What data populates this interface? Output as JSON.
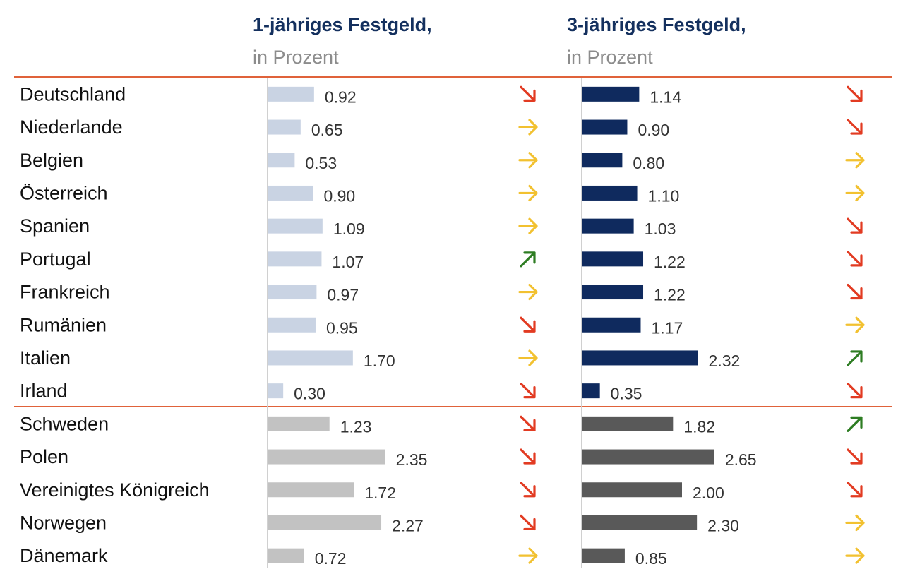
{
  "colors": {
    "rule": "#e0623a",
    "axis": "#d0d0d0",
    "euro_1y": "#c9d3e3",
    "euro_3y": "#0f2a5e",
    "noneuro_1y": "#c2c2c2",
    "noneuro_3y": "#595959",
    "trend_down": "#e23b22",
    "trend_flat": "#f2c130",
    "trend_up": "#2e7d23"
  },
  "chart_data": [
    {
      "type": "bar",
      "orientation": "horizontal",
      "title": "1-jähriges Festgeld,",
      "subtitle": "in Prozent",
      "categories": [
        "Deutschland",
        "Niederlande",
        "Belgien",
        "Österreich",
        "Spanien",
        "Portugal",
        "Frankreich",
        "Rumänien",
        "Italien",
        "Irland",
        "Schweden",
        "Polen",
        "Vereinigtes Königreich",
        "Norwegen",
        "Dänemark"
      ],
      "values": [
        0.92,
        0.65,
        0.53,
        0.9,
        1.09,
        1.07,
        0.97,
        0.95,
        1.7,
        0.3,
        1.23,
        2.35,
        1.72,
        2.27,
        0.72
      ],
      "value_labels": [
        "0.92",
        "0.65",
        "0.53",
        "0.90",
        "1.09",
        "1.07",
        "0.97",
        "0.95",
        "1.70",
        "0.30",
        "1.23",
        "2.35",
        "1.72",
        "2.27",
        "0.72"
      ],
      "trends": [
        "down",
        "flat",
        "flat",
        "flat",
        "flat",
        "up",
        "flat",
        "down",
        "flat",
        "down",
        "down",
        "down",
        "down",
        "down",
        "flat"
      ],
      "xlim": [
        0,
        2.7
      ],
      "groups": [
        "euro",
        "euro",
        "euro",
        "euro",
        "euro",
        "euro",
        "euro",
        "euro",
        "euro",
        "euro",
        "non-euro",
        "non-euro",
        "non-euro",
        "non-euro",
        "non-euro"
      ]
    },
    {
      "type": "bar",
      "orientation": "horizontal",
      "title": "3-jähriges Festgeld,",
      "subtitle": "in Prozent",
      "categories": [
        "Deutschland",
        "Niederlande",
        "Belgien",
        "Österreich",
        "Spanien",
        "Portugal",
        "Frankreich",
        "Rumänien",
        "Italien",
        "Irland",
        "Schweden",
        "Polen",
        "Vereinigtes Königreich",
        "Norwegen",
        "Dänemark"
      ],
      "values": [
        1.14,
        0.9,
        0.8,
        1.1,
        1.03,
        1.22,
        1.22,
        1.17,
        2.32,
        0.35,
        1.82,
        2.65,
        2.0,
        2.3,
        0.85
      ],
      "value_labels": [
        "1.14",
        "0.90",
        "0.80",
        "1.10",
        "1.03",
        "1.22",
        "1.22",
        "1.17",
        "2.32",
        "0.35",
        "1.82",
        "2.65",
        "2.00",
        "2.30",
        "0.85"
      ],
      "trends": [
        "down",
        "down",
        "flat",
        "flat",
        "down",
        "down",
        "down",
        "flat",
        "up",
        "down",
        "up",
        "down",
        "down",
        "flat",
        "flat"
      ],
      "xlim": [
        0,
        2.7
      ],
      "groups": [
        "euro",
        "euro",
        "euro",
        "euro",
        "euro",
        "euro",
        "euro",
        "euro",
        "euro",
        "euro",
        "non-euro",
        "non-euro",
        "non-euro",
        "non-euro",
        "non-euro"
      ]
    }
  ]
}
